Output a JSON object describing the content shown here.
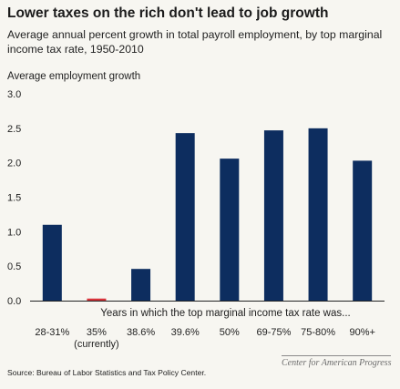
{
  "header": {
    "title": "Lower taxes on the rich don't lead to job growth",
    "subtitle": "Average annual percent growth in total payroll employment, by top marginal income tax rate, 1950-2010"
  },
  "footer": {
    "source": "Source: Bureau of Labor Statistics and Tax Policy Center.",
    "logo_text": "Center for American Progress"
  },
  "colors": {
    "bar": "#0d2d5f",
    "highlight": "#d8333a",
    "axis": "#222222",
    "background": "#f7f6f1"
  },
  "chart_data": {
    "type": "bar",
    "title": "Lower taxes on the rich don't lead to job growth",
    "ylabel": "Average employment growth",
    "xlabel": "Years in which the top marginal income tax rate was...",
    "categories": [
      "28-31%",
      "35% (currently)",
      "38.6%",
      "39.6%",
      "50%",
      "69-75%",
      "75-80%",
      "90%+"
    ],
    "category_lines": [
      [
        "28-31%"
      ],
      [
        "35%",
        "(currently)"
      ],
      [
        "38.6%"
      ],
      [
        "39.6%"
      ],
      [
        "50%"
      ],
      [
        "69-75%"
      ],
      [
        "75-80%"
      ],
      [
        "90%+"
      ]
    ],
    "values": [
      1.1,
      0.03,
      0.46,
      2.43,
      2.06,
      2.47,
      2.5,
      2.03
    ],
    "highlight_index": 1,
    "ylim": [
      0,
      3.0
    ],
    "yticks": [
      "0.0",
      "0.5",
      "1.0",
      "1.5",
      "2.0",
      "2.5",
      "3.0"
    ],
    "grid": false,
    "legend": "none"
  }
}
